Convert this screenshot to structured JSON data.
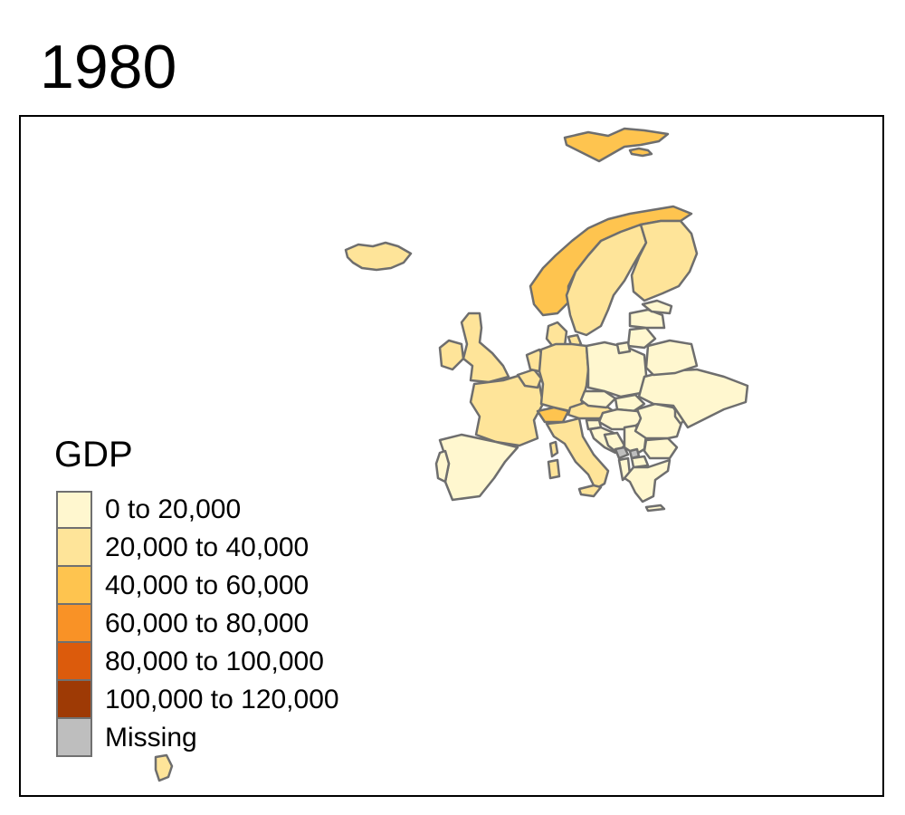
{
  "map": {
    "title": "1980",
    "legend": {
      "title": "GDP",
      "items": [
        {
          "label": "0 to 20,000",
          "color": "#FFF7CF"
        },
        {
          "label": "20,000 to 40,000",
          "color": "#FEE499"
        },
        {
          "label": "40,000 to 60,000",
          "color": "#FEC44F"
        },
        {
          "label": "60,000 to 80,000",
          "color": "#F99226"
        },
        {
          "label": "80,000 to 100,000",
          "color": "#DC5B0C"
        },
        {
          "label": "100,000 to 120,000",
          "color": "#9E3A05"
        },
        {
          "label": "Missing",
          "color": "#BEBEBE"
        }
      ]
    },
    "regions": [
      {
        "name": "Svalbard",
        "bin": "40,000 to 60,000"
      },
      {
        "name": "Iceland",
        "bin": "20,000 to 40,000"
      },
      {
        "name": "Norway",
        "bin": "40,000 to 60,000"
      },
      {
        "name": "Sweden",
        "bin": "20,000 to 40,000"
      },
      {
        "name": "Finland",
        "bin": "20,000 to 40,000"
      },
      {
        "name": "Denmark",
        "bin": "20,000 to 40,000"
      },
      {
        "name": "Ireland",
        "bin": "20,000 to 40,000"
      },
      {
        "name": "United Kingdom",
        "bin": "20,000 to 40,000"
      },
      {
        "name": "France",
        "bin": "20,000 to 40,000"
      },
      {
        "name": "Spain",
        "bin": "0 to 20,000"
      },
      {
        "name": "Portugal",
        "bin": "0 to 20,000"
      },
      {
        "name": "Belgium",
        "bin": "20,000 to 40,000"
      },
      {
        "name": "Netherlands",
        "bin": "20,000 to 40,000"
      },
      {
        "name": "Germany",
        "bin": "20,000 to 40,000"
      },
      {
        "name": "Switzerland",
        "bin": "40,000 to 60,000"
      },
      {
        "name": "Austria",
        "bin": "20,000 to 40,000"
      },
      {
        "name": "Italy",
        "bin": "20,000 to 40,000"
      },
      {
        "name": "Corsica",
        "bin": "20,000 to 40,000"
      },
      {
        "name": "Sardinia",
        "bin": "20,000 to 40,000"
      },
      {
        "name": "Sicily",
        "bin": "20,000 to 40,000"
      },
      {
        "name": "Poland",
        "bin": "0 to 20,000"
      },
      {
        "name": "Czechia",
        "bin": "0 to 20,000"
      },
      {
        "name": "Slovakia",
        "bin": "0 to 20,000"
      },
      {
        "name": "Hungary",
        "bin": "0 to 20,000"
      },
      {
        "name": "Slovenia",
        "bin": "0 to 20,000"
      },
      {
        "name": "Croatia",
        "bin": "0 to 20,000"
      },
      {
        "name": "Bosnia",
        "bin": "0 to 20,000"
      },
      {
        "name": "Serbia",
        "bin": "0 to 20,000"
      },
      {
        "name": "Kosovo",
        "bin": "Missing"
      },
      {
        "name": "Montenegro",
        "bin": "Missing"
      },
      {
        "name": "Albania",
        "bin": "0 to 20,000"
      },
      {
        "name": "North Macedonia",
        "bin": "0 to 20,000"
      },
      {
        "name": "Greece",
        "bin": "0 to 20,000"
      },
      {
        "name": "Crete",
        "bin": "0 to 20,000"
      },
      {
        "name": "Bulgaria",
        "bin": "0 to 20,000"
      },
      {
        "name": "Romania",
        "bin": "0 to 20,000"
      },
      {
        "name": "Moldova",
        "bin": "0 to 20,000"
      },
      {
        "name": "Ukraine",
        "bin": "0 to 20,000"
      },
      {
        "name": "Belarus",
        "bin": "0 to 20,000"
      },
      {
        "name": "Lithuania",
        "bin": "0 to 20,000"
      },
      {
        "name": "Latvia",
        "bin": "0 to 20,000"
      },
      {
        "name": "Estonia",
        "bin": "0 to 20,000"
      },
      {
        "name": "Kaliningrad",
        "bin": "0 to 20,000"
      },
      {
        "name": "Madeira",
        "bin": "20,000 to 40,000"
      }
    ]
  }
}
